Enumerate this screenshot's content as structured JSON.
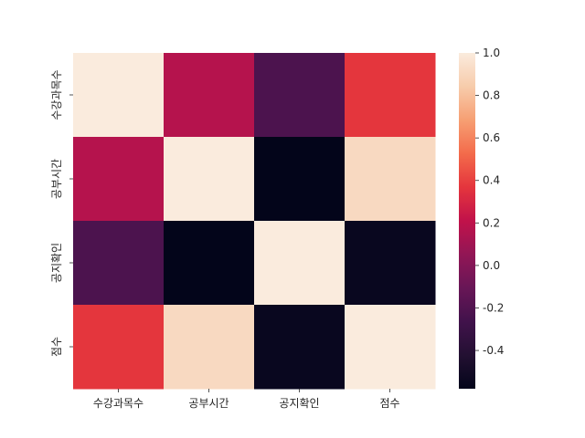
{
  "chart_data": {
    "type": "heatmap",
    "title": "",
    "xlabel": "",
    "ylabel": "",
    "x_categories": [
      "수강과목수",
      "공부시간",
      "공지확인",
      "점수"
    ],
    "y_categories": [
      "수강과목수",
      "공부시간",
      "공지확인",
      "점수"
    ],
    "values": [
      [
        1.0,
        0.17,
        -0.22,
        0.37
      ],
      [
        0.17,
        1.0,
        -0.58,
        0.91
      ],
      [
        -0.22,
        -0.58,
        1.0,
        -0.55
      ],
      [
        0.37,
        0.91,
        -0.55,
        1.0
      ]
    ],
    "colorbar": {
      "min": -0.58,
      "max": 1.0,
      "ticks": [
        -0.4,
        -0.2,
        0.0,
        0.2,
        0.4,
        0.6,
        0.8,
        1.0
      ],
      "tick_labels": [
        "-0.4",
        "-0.2",
        "0.0",
        "0.2",
        "0.4",
        "0.6",
        "0.8",
        "1.0"
      ],
      "colormap": "rocket"
    },
    "grid": false
  }
}
